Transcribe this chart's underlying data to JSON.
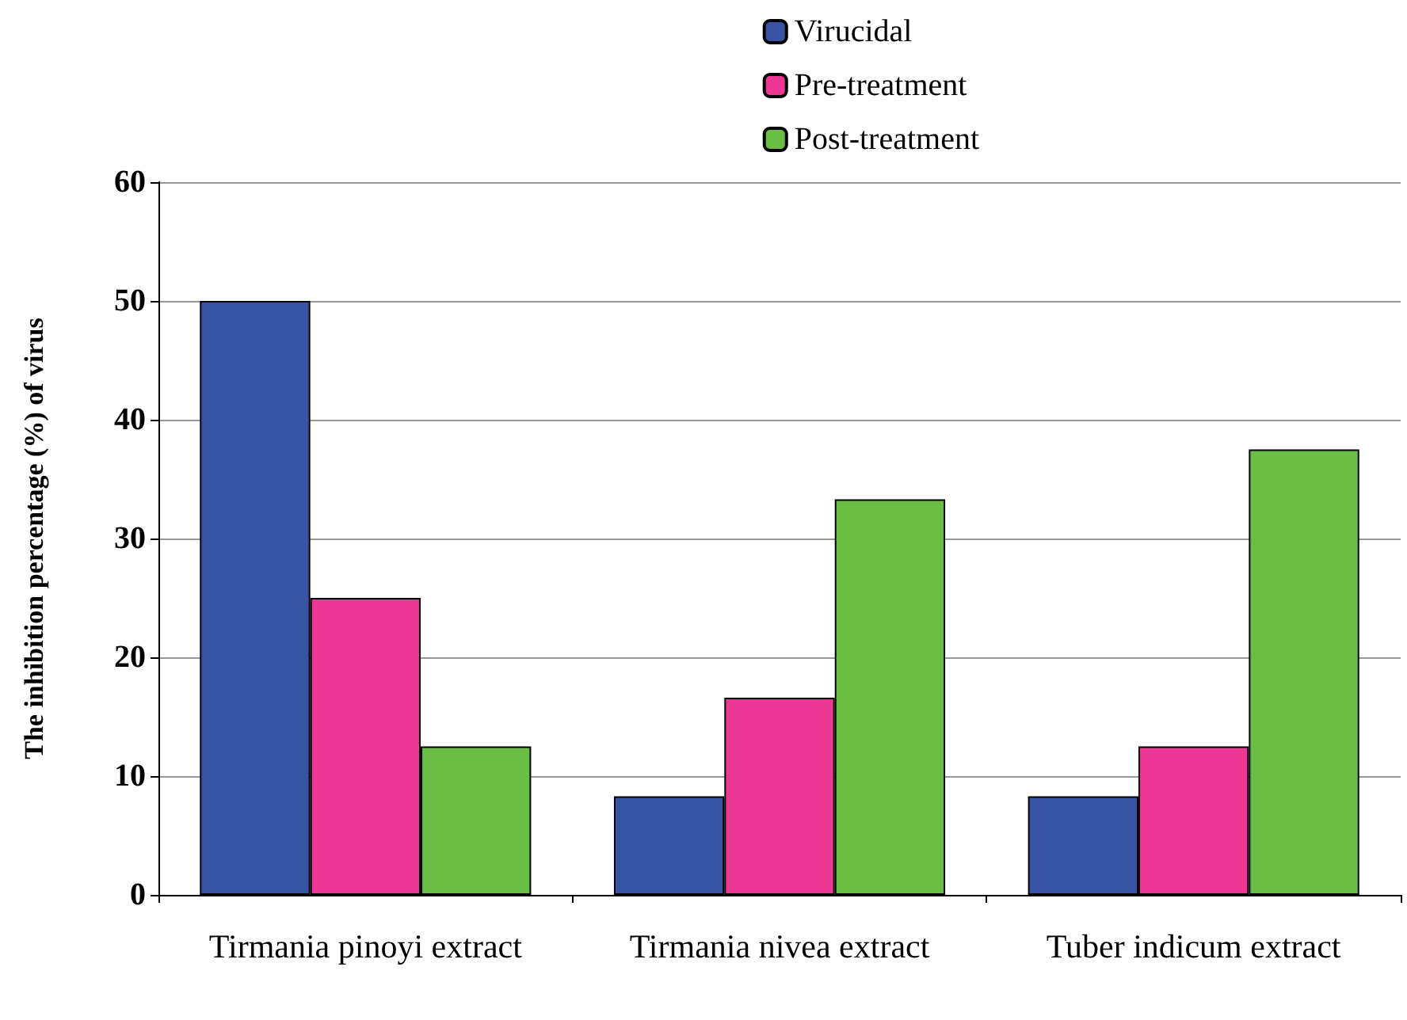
{
  "chart_data": {
    "type": "bar",
    "ylabel": "The inhibition percentage (%) of virus",
    "categories": [
      "Tirmania pinoyi extract",
      "Tirmania nivea extract",
      "Tuber indicum extract"
    ],
    "series": [
      {
        "name": "Virucidal",
        "color": "#3953a4",
        "values": [
          50,
          8.3,
          8.3
        ]
      },
      {
        "name": "Pre-treatment",
        "color": "#ec3894",
        "values": [
          25,
          16.6,
          12.5
        ]
      },
      {
        "name": "Post-treatment",
        "color": "#6abd45",
        "values": [
          12.5,
          33.3,
          37.5
        ]
      }
    ],
    "ylim": [
      0,
      60
    ],
    "yticks": [
      0,
      10,
      20,
      30,
      40,
      50,
      60
    ],
    "grid": "y",
    "legend": "top right"
  }
}
